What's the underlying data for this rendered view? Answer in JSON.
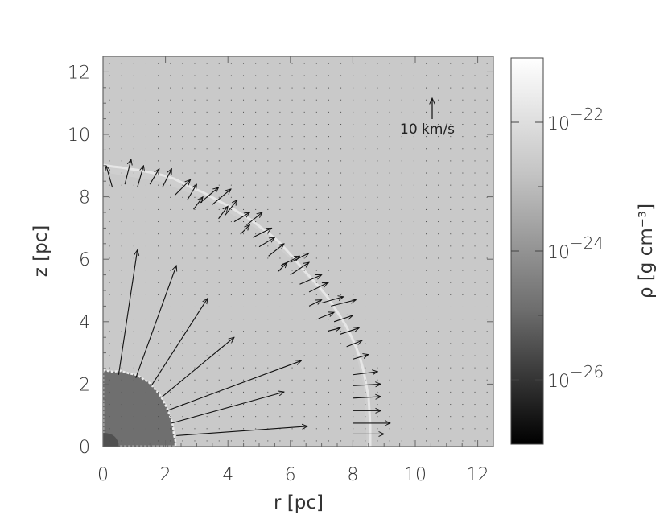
{
  "chart_data": {
    "type": "vector-field",
    "xlabel": "r [pc]",
    "ylabel": "z [pc]",
    "xlim": [
      0,
      12.5
    ],
    "ylim": [
      0,
      12.5
    ],
    "x_ticks": [
      "0",
      "2",
      "4",
      "6",
      "8",
      "10",
      "12"
    ],
    "y_ticks": [
      "0",
      "2",
      "4",
      "6",
      "8",
      "10",
      "12"
    ],
    "velocity_reference": {
      "label": "10 km/s",
      "value_kms": 10
    },
    "colorbar": {
      "label": "ρ [g cm⁻³]",
      "scale": "log",
      "range": [
        1e-27,
        1e-21
      ],
      "tick_labels": [
        "10",
        "10",
        "10"
      ],
      "tick_exponents": [
        "−22",
        "−24",
        "−26"
      ],
      "tick_values_log10": [
        -22,
        -24,
        -26
      ],
      "colormap": "grayscale (black = low, white = high)"
    },
    "regions": [
      {
        "name": "ambient medium",
        "log_density": -23.3
      },
      {
        "name": "inner bubble (r < ~2.3 pc)",
        "log_density": -25.3
      },
      {
        "name": "expanding shell front (~8.7–9.0 pc)",
        "log_density": -22.5
      }
    ],
    "vectors": [
      {
        "r": 0.5,
        "z": 2.3,
        "vr": 0.6,
        "vz": 4.0
      },
      {
        "r": 1.05,
        "z": 2.2,
        "vr": 1.3,
        "vz": 3.6
      },
      {
        "r": 1.55,
        "z": 1.95,
        "vr": 1.8,
        "vz": 2.8
      },
      {
        "r": 1.9,
        "z": 1.6,
        "vr": 2.3,
        "vz": 1.9
      },
      {
        "r": 2.05,
        "z": 1.15,
        "vr": 4.3,
        "vz": 1.6
      },
      {
        "r": 2.2,
        "z": 0.75,
        "vr": 3.6,
        "vz": 1.0
      },
      {
        "r": 2.35,
        "z": 0.35,
        "vr": 4.2,
        "vz": 0.3
      },
      {
        "r": 0.3,
        "z": 8.3,
        "vr": -0.2,
        "vz": 0.7
      },
      {
        "r": 0.7,
        "z": 8.4,
        "vr": 0.2,
        "vz": 0.8
      },
      {
        "r": 1.1,
        "z": 8.3,
        "vr": 0.2,
        "vz": 0.7
      },
      {
        "r": 1.5,
        "z": 8.4,
        "vr": 0.3,
        "vz": 0.5
      },
      {
        "r": 1.9,
        "z": 8.3,
        "vr": 0.3,
        "vz": 0.6
      },
      {
        "r": 2.3,
        "z": 8.05,
        "vr": 0.5,
        "vz": 0.5
      },
      {
        "r": 2.7,
        "z": 7.9,
        "vr": 0.3,
        "vz": 0.5
      },
      {
        "r": 3.1,
        "z": 7.8,
        "vr": 0.6,
        "vz": 0.5
      },
      {
        "r": 3.5,
        "z": 7.75,
        "vr": 0.6,
        "vz": 0.5
      },
      {
        "r": 3.9,
        "z": 7.4,
        "vr": 0.4,
        "vz": 0.5
      },
      {
        "r": 4.2,
        "z": 7.2,
        "vr": 0.5,
        "vz": 0.3
      },
      {
        "r": 4.6,
        "z": 7.1,
        "vr": 0.5,
        "vz": 0.4
      },
      {
        "r": 4.8,
        "z": 6.7,
        "vr": 0.6,
        "vz": 0.3
      },
      {
        "r": 5.0,
        "z": 6.4,
        "vr": 0.5,
        "vz": 0.3
      },
      {
        "r": 5.3,
        "z": 6.1,
        "vr": 0.5,
        "vz": 0.4
      },
      {
        "r": 5.7,
        "z": 5.8,
        "vr": 0.6,
        "vz": 0.3
      },
      {
        "r": 6.0,
        "z": 5.5,
        "vr": 0.6,
        "vz": 0.4
      },
      {
        "r": 6.3,
        "z": 5.2,
        "vr": 0.7,
        "vz": 0.3
      },
      {
        "r": 6.6,
        "z": 4.95,
        "vr": 0.6,
        "vz": 0.3
      },
      {
        "r": 7.0,
        "z": 4.6,
        "vr": 0.7,
        "vz": 0.2
      },
      {
        "r": 7.3,
        "z": 4.5,
        "vr": 0.8,
        "vz": 0.2
      },
      {
        "r": 7.4,
        "z": 4.0,
        "vr": 0.6,
        "vz": 0.2
      },
      {
        "r": 7.6,
        "z": 3.6,
        "vr": 0.6,
        "vz": 0.2
      },
      {
        "r": 7.8,
        "z": 3.2,
        "vr": 0.5,
        "vz": 0.2
      },
      {
        "r": 8.0,
        "z": 2.8,
        "vr": 0.5,
        "vz": 0.15
      },
      {
        "r": 8.0,
        "z": 2.3,
        "vr": 0.8,
        "vz": 0.1
      },
      {
        "r": 8.0,
        "z": 1.95,
        "vr": 0.9,
        "vz": 0.05
      },
      {
        "r": 8.0,
        "z": 1.55,
        "vr": 0.9,
        "vz": 0.05
      },
      {
        "r": 8.0,
        "z": 1.15,
        "vr": 0.9,
        "vz": 0.0
      },
      {
        "r": 8.0,
        "z": 0.75,
        "vr": 1.2,
        "vz": 0.0
      },
      {
        "r": 8.0,
        "z": 0.4,
        "vr": 1.0,
        "vz": 0.0
      },
      {
        "r": 6.6,
        "z": 4.5,
        "vr": 0.4,
        "vz": 0.2
      },
      {
        "r": 6.9,
        "z": 4.1,
        "vr": 0.5,
        "vz": 0.2
      },
      {
        "r": 7.2,
        "z": 3.7,
        "vr": 0.4,
        "vz": 0.1
      },
      {
        "r": 4.4,
        "z": 6.8,
        "vr": 0.3,
        "vz": 0.3
      },
      {
        "r": 3.7,
        "z": 7.3,
        "vr": 0.3,
        "vz": 0.4
      },
      {
        "r": 2.9,
        "z": 7.6,
        "vr": 0.3,
        "vz": 0.4
      },
      {
        "r": 5.6,
        "z": 5.6,
        "vr": 0.3,
        "vz": 0.3
      },
      {
        "r": 6.0,
        "z": 5.9,
        "vr": 0.6,
        "vz": 0.3
      }
    ]
  }
}
